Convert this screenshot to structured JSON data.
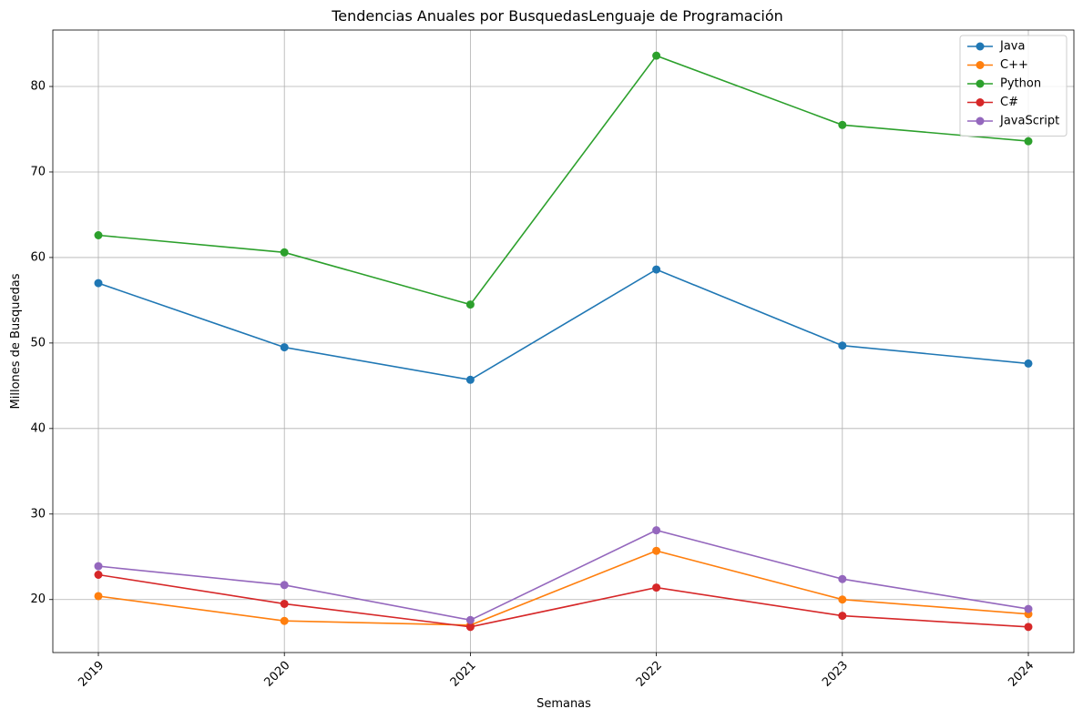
{
  "chart_data": {
    "type": "line",
    "title": "Tendencias Anuales por BusquedasLenguaje de Programación",
    "xlabel": "Semanas",
    "ylabel": "Millones de Busquedas",
    "categories": [
      "2019",
      "2020",
      "2021",
      "2022",
      "2023",
      "2024"
    ],
    "ylim": [
      13.8,
      86.6
    ],
    "yticks": [
      20,
      30,
      40,
      50,
      60,
      70,
      80
    ],
    "grid": true,
    "legend_position": "top-right",
    "xtick_rotation": 45,
    "series": [
      {
        "name": "Java",
        "color": "#1f77b4",
        "values": [
          57.0,
          49.5,
          45.7,
          58.6,
          49.7,
          47.6
        ]
      },
      {
        "name": "C++",
        "color": "#ff7f0e",
        "values": [
          20.4,
          17.5,
          17.0,
          25.7,
          20.0,
          18.3
        ]
      },
      {
        "name": "Python",
        "color": "#2ca02c",
        "values": [
          62.6,
          60.6,
          54.5,
          83.6,
          75.5,
          73.6
        ]
      },
      {
        "name": "C#",
        "color": "#d62728",
        "values": [
          22.9,
          19.5,
          16.8,
          21.4,
          18.1,
          16.8
        ]
      },
      {
        "name": "JavaScript",
        "color": "#9467bd",
        "values": [
          23.9,
          21.7,
          17.6,
          28.1,
          22.4,
          18.9
        ]
      }
    ]
  }
}
